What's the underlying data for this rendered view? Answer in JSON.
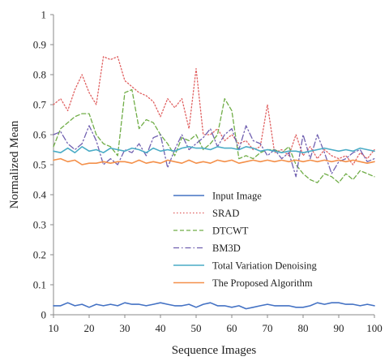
{
  "chart_data": {
    "type": "line",
    "xlabel": "Sequence Images",
    "ylabel": "Normalized Mean",
    "xlim": [
      10,
      100
    ],
    "ylim": [
      0,
      1
    ],
    "xticks": [
      10,
      20,
      30,
      40,
      50,
      60,
      70,
      80,
      90,
      100
    ],
    "yticks": [
      0,
      0.1,
      0.2,
      0.3,
      0.4,
      0.5,
      0.6,
      0.7,
      0.8,
      0.9,
      1
    ],
    "ytick_labels": [
      "0",
      "0.1",
      "0.2",
      "0.3",
      "0.4",
      "0.5",
      "0.6",
      "0.7",
      "0.8",
      "0.9",
      "1"
    ],
    "grid": false,
    "legend_position": "lower-center",
    "x": [
      10,
      12,
      14,
      16,
      18,
      20,
      22,
      24,
      26,
      28,
      30,
      32,
      34,
      36,
      38,
      40,
      42,
      44,
      46,
      48,
      50,
      52,
      54,
      56,
      58,
      60,
      62,
      64,
      66,
      68,
      70,
      72,
      74,
      76,
      78,
      80,
      82,
      84,
      86,
      88,
      90,
      92,
      94,
      96,
      98,
      100
    ],
    "series": [
      {
        "name": "Input Image",
        "color": "#4472c4",
        "dash": "solid",
        "values": [
          0.03,
          0.03,
          0.04,
          0.03,
          0.035,
          0.025,
          0.035,
          0.03,
          0.035,
          0.03,
          0.04,
          0.035,
          0.035,
          0.03,
          0.035,
          0.04,
          0.035,
          0.03,
          0.03,
          0.035,
          0.025,
          0.035,
          0.04,
          0.03,
          0.03,
          0.025,
          0.03,
          0.02,
          0.025,
          0.03,
          0.035,
          0.03,
          0.03,
          0.03,
          0.025,
          0.025,
          0.03,
          0.04,
          0.035,
          0.04,
          0.04,
          0.035,
          0.035,
          0.03,
          0.035,
          0.03
        ]
      },
      {
        "name": "SRAD",
        "color": "#e06060",
        "dash": "dotted",
        "values": [
          0.7,
          0.72,
          0.68,
          0.75,
          0.8,
          0.74,
          0.7,
          0.86,
          0.85,
          0.86,
          0.78,
          0.76,
          0.74,
          0.73,
          0.71,
          0.66,
          0.72,
          0.69,
          0.72,
          0.62,
          0.82,
          0.6,
          0.6,
          0.62,
          0.58,
          0.6,
          0.57,
          0.58,
          0.55,
          0.56,
          0.7,
          0.54,
          0.55,
          0.53,
          0.6,
          0.53,
          0.56,
          0.52,
          0.55,
          0.53,
          0.52,
          0.53,
          0.5,
          0.54,
          0.52,
          0.55
        ]
      },
      {
        "name": "DTCWT",
        "color": "#70ad47",
        "dash": "dashed",
        "values": [
          0.56,
          0.62,
          0.64,
          0.66,
          0.67,
          0.67,
          0.6,
          0.57,
          0.56,
          0.53,
          0.74,
          0.75,
          0.62,
          0.65,
          0.64,
          0.6,
          0.57,
          0.53,
          0.59,
          0.58,
          0.6,
          0.55,
          0.57,
          0.6,
          0.72,
          0.68,
          0.52,
          0.53,
          0.52,
          0.54,
          0.55,
          0.55,
          0.54,
          0.56,
          0.5,
          0.47,
          0.45,
          0.44,
          0.47,
          0.46,
          0.44,
          0.47,
          0.45,
          0.48,
          0.47,
          0.46
        ]
      },
      {
        "name": "BM3D",
        "color": "#7060b0",
        "dash": "dashdot",
        "values": [
          0.6,
          0.61,
          0.57,
          0.55,
          0.57,
          0.63,
          0.58,
          0.5,
          0.52,
          0.5,
          0.55,
          0.54,
          0.57,
          0.53,
          0.59,
          0.6,
          0.49,
          0.55,
          0.6,
          0.55,
          0.57,
          0.59,
          0.62,
          0.56,
          0.6,
          0.62,
          0.55,
          0.63,
          0.58,
          0.57,
          0.53,
          0.55,
          0.52,
          0.54,
          0.46,
          0.6,
          0.52,
          0.6,
          0.54,
          0.47,
          0.51,
          0.52,
          0.54,
          0.55,
          0.51,
          0.52
        ]
      },
      {
        "name": "Total Variation Denoising",
        "color": "#4aacc6",
        "dash": "solid",
        "values": [
          0.545,
          0.54,
          0.555,
          0.54,
          0.56,
          0.545,
          0.55,
          0.54,
          0.555,
          0.55,
          0.545,
          0.555,
          0.55,
          0.54,
          0.555,
          0.545,
          0.55,
          0.545,
          0.555,
          0.56,
          0.555,
          0.555,
          0.55,
          0.56,
          0.555,
          0.555,
          0.55,
          0.56,
          0.555,
          0.545,
          0.55,
          0.545,
          0.54,
          0.545,
          0.545,
          0.54,
          0.545,
          0.55,
          0.555,
          0.55,
          0.545,
          0.55,
          0.545,
          0.555,
          0.55,
          0.545
        ]
      },
      {
        "name": "The Proposed Algorithm",
        "color": "#f4904a",
        "dash": "solid",
        "values": [
          0.515,
          0.52,
          0.51,
          0.515,
          0.5,
          0.505,
          0.505,
          0.51,
          0.505,
          0.51,
          0.51,
          0.505,
          0.515,
          0.505,
          0.51,
          0.505,
          0.515,
          0.51,
          0.505,
          0.515,
          0.505,
          0.51,
          0.505,
          0.515,
          0.51,
          0.515,
          0.505,
          0.51,
          0.515,
          0.51,
          0.515,
          0.51,
          0.515,
          0.51,
          0.515,
          0.51,
          0.515,
          0.51,
          0.515,
          0.51,
          0.515,
          0.51,
          0.515,
          0.51,
          0.505,
          0.51
        ]
      }
    ]
  }
}
